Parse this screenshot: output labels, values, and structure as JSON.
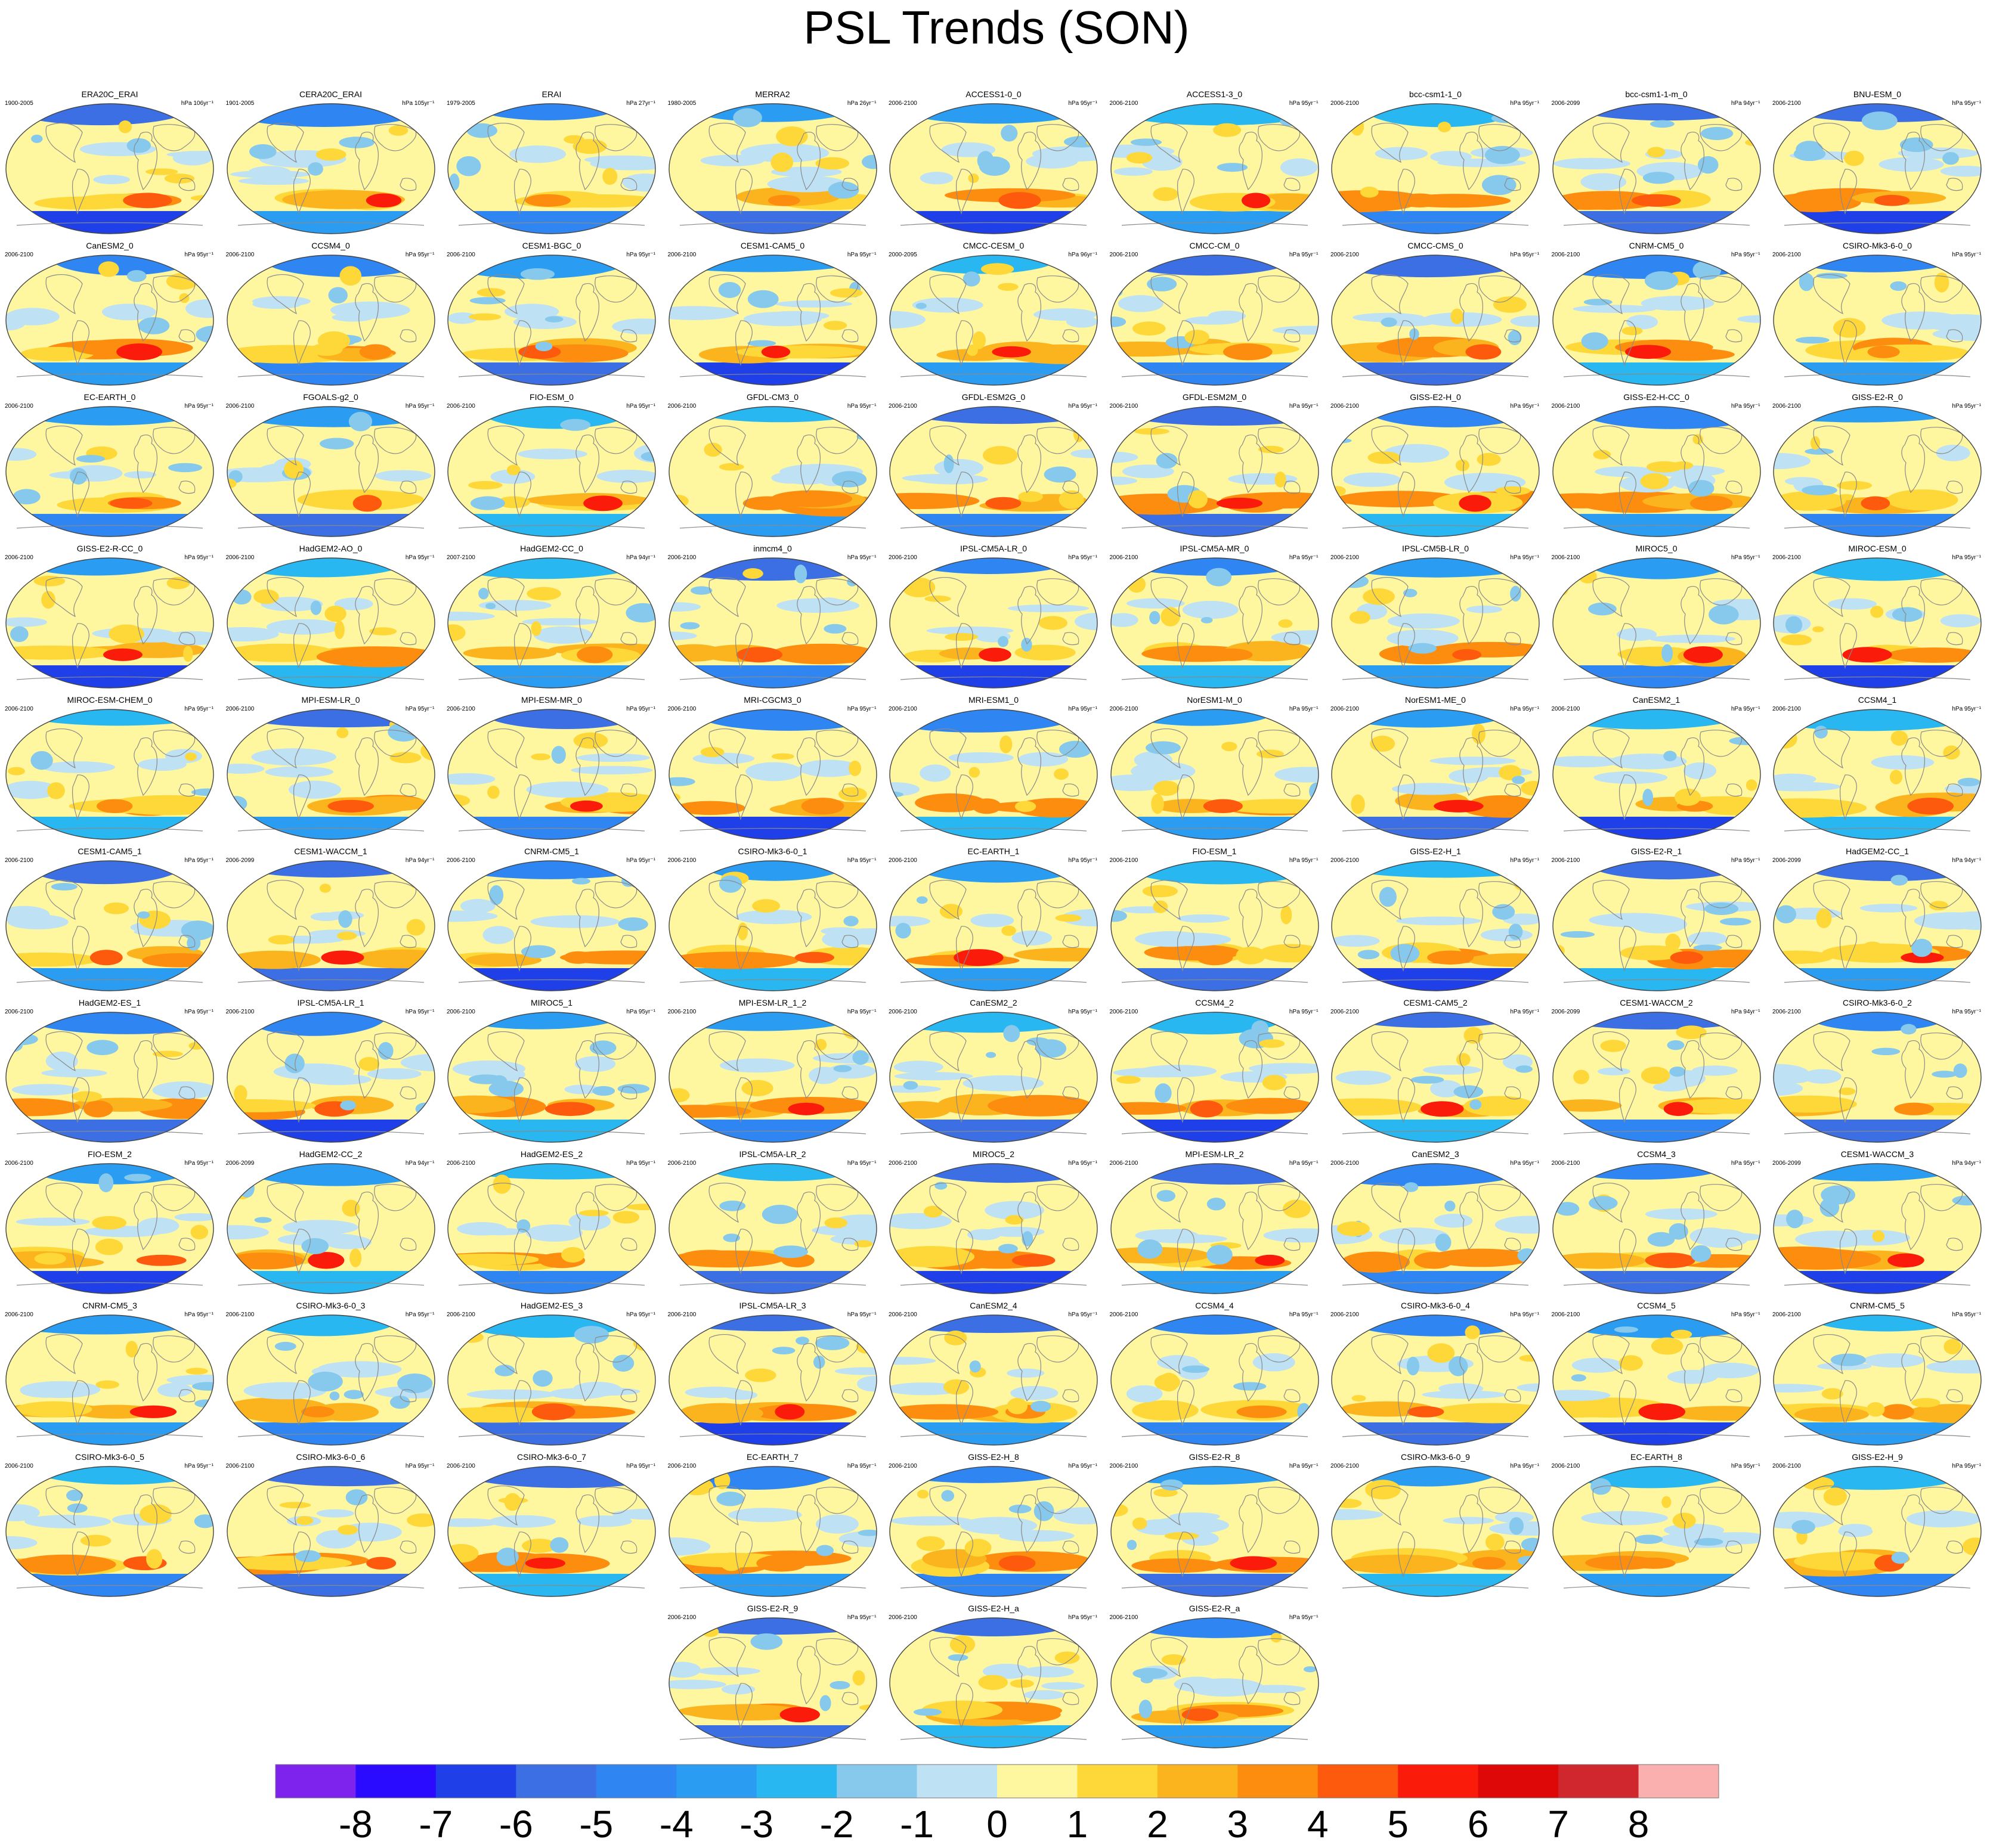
{
  "title": "PSL Trends (SON)",
  "chart_data": {
    "type": "heatmap",
    "title": "PSL Trends (SON)",
    "projection": "Robinson global map panels with coastlines",
    "colorbar": {
      "orientation": "horizontal",
      "placement": "bottom",
      "tick_labels": [
        "-8",
        "-7",
        "-6",
        "-5",
        "-4",
        "-3",
        "-2",
        "-1",
        "0",
        "1",
        "2",
        "3",
        "4",
        "5",
        "6",
        "7",
        "8"
      ],
      "colors": [
        "#7e22ee",
        "#2a0bff",
        "#1f3fe8",
        "#3b6fe3",
        "#2f86f2",
        "#2a9cf2",
        "#28b7f0",
        "#86c9ec",
        "#bfe1f4",
        "#fff7a0",
        "#fdd838",
        "#fbb41d",
        "#fc8d0f",
        "#fd5a0d",
        "#fb1b0b",
        "#de0808",
        "#d0272e",
        "#fbb0b0"
      ]
    },
    "panels": [
      {
        "name": "ERA20C_ERAI",
        "period": "1900-2005",
        "units": "hPa 106yr⁻¹"
      },
      {
        "name": "CERA20C_ERAI",
        "period": "1901-2005",
        "units": "hPa 105yr⁻¹"
      },
      {
        "name": "ERAI",
        "period": "1979-2005",
        "units": "hPa 27yr⁻¹"
      },
      {
        "name": "MERRA2",
        "period": "1980-2005",
        "units": "hPa 26yr⁻¹"
      },
      {
        "name": "ACCESS1-0_0",
        "period": "2006-2100",
        "units": "hPa 95yr⁻¹"
      },
      {
        "name": "ACCESS1-3_0",
        "period": "2006-2100",
        "units": "hPa 95yr⁻¹"
      },
      {
        "name": "bcc-csm1-1_0",
        "period": "2006-2100",
        "units": "hPa 95yr⁻¹"
      },
      {
        "name": "bcc-csm1-1-m_0",
        "period": "2006-2099",
        "units": "hPa 94yr⁻¹"
      },
      {
        "name": "BNU-ESM_0",
        "period": "2006-2100",
        "units": "hPa 95yr⁻¹"
      },
      {
        "name": "CanESM2_0",
        "period": "2006-2100",
        "units": "hPa 95yr⁻¹"
      },
      {
        "name": "CCSM4_0",
        "period": "2006-2100",
        "units": "hPa 95yr⁻¹"
      },
      {
        "name": "CESM1-BGC_0",
        "period": "2006-2100",
        "units": "hPa 95yr⁻¹"
      },
      {
        "name": "CESM1-CAM5_0",
        "period": "2006-2100",
        "units": "hPa 95yr⁻¹"
      },
      {
        "name": "CMCC-CESM_0",
        "period": "2000-2095",
        "units": "hPa 96yr⁻¹"
      },
      {
        "name": "CMCC-CM_0",
        "period": "2006-2100",
        "units": "hPa 95yr⁻¹"
      },
      {
        "name": "CMCC-CMS_0",
        "period": "2006-2100",
        "units": "hPa 95yr⁻¹"
      },
      {
        "name": "CNRM-CM5_0",
        "period": "2006-2100",
        "units": "hPa 95yr⁻¹"
      },
      {
        "name": "CSIRO-Mk3-6-0_0",
        "period": "2006-2100",
        "units": "hPa 95yr⁻¹"
      },
      {
        "name": "EC-EARTH_0",
        "period": "2006-2100",
        "units": "hPa 95yr⁻¹"
      },
      {
        "name": "FGOALS-g2_0",
        "period": "2006-2100",
        "units": "hPa 95yr⁻¹"
      },
      {
        "name": "FIO-ESM_0",
        "period": "2006-2100",
        "units": "hPa 95yr⁻¹"
      },
      {
        "name": "GFDL-CM3_0",
        "period": "2006-2100",
        "units": "hPa 95yr⁻¹"
      },
      {
        "name": "GFDL-ESM2G_0",
        "period": "2006-2100",
        "units": "hPa 95yr⁻¹"
      },
      {
        "name": "GFDL-ESM2M_0",
        "period": "2006-2100",
        "units": "hPa 95yr⁻¹"
      },
      {
        "name": "GISS-E2-H_0",
        "period": "2006-2100",
        "units": "hPa 95yr⁻¹"
      },
      {
        "name": "GISS-E2-H-CC_0",
        "period": "2006-2100",
        "units": "hPa 95yr⁻¹"
      },
      {
        "name": "GISS-E2-R_0",
        "period": "2006-2100",
        "units": "hPa 95yr⁻¹"
      },
      {
        "name": "GISS-E2-R-CC_0",
        "period": "2006-2100",
        "units": "hPa 95yr⁻¹"
      },
      {
        "name": "HadGEM2-AO_0",
        "period": "2006-2100",
        "units": "hPa 95yr⁻¹"
      },
      {
        "name": "HadGEM2-CC_0",
        "period": "2007-2100",
        "units": "hPa 94yr⁻¹"
      },
      {
        "name": "inmcm4_0",
        "period": "2006-2100",
        "units": "hPa 95yr⁻¹"
      },
      {
        "name": "IPSL-CM5A-LR_0",
        "period": "2006-2100",
        "units": "hPa 95yr⁻¹"
      },
      {
        "name": "IPSL-CM5A-MR_0",
        "period": "2006-2100",
        "units": "hPa 95yr⁻¹"
      },
      {
        "name": "IPSL-CM5B-LR_0",
        "period": "2006-2100",
        "units": "hPa 95yr⁻¹"
      },
      {
        "name": "MIROC5_0",
        "period": "2006-2100",
        "units": "hPa 95yr⁻¹"
      },
      {
        "name": "MIROC-ESM_0",
        "period": "2006-2100",
        "units": "hPa 95yr⁻¹"
      },
      {
        "name": "MIROC-ESM-CHEM_0",
        "period": "2006-2100",
        "units": "hPa 95yr⁻¹"
      },
      {
        "name": "MPI-ESM-LR_0",
        "period": "2006-2100",
        "units": "hPa 95yr⁻¹"
      },
      {
        "name": "MPI-ESM-MR_0",
        "period": "2006-2100",
        "units": "hPa 95yr⁻¹"
      },
      {
        "name": "MRI-CGCM3_0",
        "period": "2006-2100",
        "units": "hPa 95yr⁻¹"
      },
      {
        "name": "MRI-ESM1_0",
        "period": "2006-2100",
        "units": "hPa 95yr⁻¹"
      },
      {
        "name": "NorESM1-M_0",
        "period": "2006-2100",
        "units": "hPa 95yr⁻¹"
      },
      {
        "name": "NorESM1-ME_0",
        "period": "2006-2100",
        "units": "hPa 95yr⁻¹"
      },
      {
        "name": "CanESM2_1",
        "period": "2006-2100",
        "units": "hPa 95yr⁻¹"
      },
      {
        "name": "CCSM4_1",
        "period": "2006-2100",
        "units": "hPa 95yr⁻¹"
      },
      {
        "name": "CESM1-CAM5_1",
        "period": "2006-2100",
        "units": "hPa 95yr⁻¹"
      },
      {
        "name": "CESM1-WACCM_1",
        "period": "2006-2099",
        "units": "hPa 94yr⁻¹"
      },
      {
        "name": "CNRM-CM5_1",
        "period": "2006-2100",
        "units": "hPa 95yr⁻¹"
      },
      {
        "name": "CSIRO-Mk3-6-0_1",
        "period": "2006-2100",
        "units": "hPa 95yr⁻¹"
      },
      {
        "name": "EC-EARTH_1",
        "period": "2006-2100",
        "units": "hPa 95yr⁻¹"
      },
      {
        "name": "FIO-ESM_1",
        "period": "2006-2100",
        "units": "hPa 95yr⁻¹"
      },
      {
        "name": "GISS-E2-H_1",
        "period": "2006-2100",
        "units": "hPa 95yr⁻¹"
      },
      {
        "name": "GISS-E2-R_1",
        "period": "2006-2100",
        "units": "hPa 95yr⁻¹"
      },
      {
        "name": "HadGEM2-CC_1",
        "period": "2006-2099",
        "units": "hPa 94yr⁻¹"
      },
      {
        "name": "HadGEM2-ES_1",
        "period": "2006-2100",
        "units": "hPa 95yr⁻¹"
      },
      {
        "name": "IPSL-CM5A-LR_1",
        "period": "2006-2100",
        "units": "hPa 95yr⁻¹"
      },
      {
        "name": "MIROC5_1",
        "period": "2006-2100",
        "units": "hPa 95yr⁻¹"
      },
      {
        "name": "MPI-ESM-LR_1_2",
        "period": "2006-2100",
        "units": "hPa 95yr⁻¹"
      },
      {
        "name": "CanESM2_2",
        "period": "2006-2100",
        "units": "hPa 95yr⁻¹"
      },
      {
        "name": "CCSM4_2",
        "period": "2006-2100",
        "units": "hPa 95yr⁻¹"
      },
      {
        "name": "CESM1-CAM5_2",
        "period": "2006-2100",
        "units": "hPa 95yr⁻¹"
      },
      {
        "name": "CESM1-WACCM_2",
        "period": "2006-2099",
        "units": "hPa 94yr⁻¹"
      },
      {
        "name": "CSIRO-Mk3-6-0_2",
        "period": "2006-2100",
        "units": "hPa 95yr⁻¹"
      },
      {
        "name": "FIO-ESM_2",
        "period": "2006-2100",
        "units": "hPa 95yr⁻¹"
      },
      {
        "name": "HadGEM2-CC_2",
        "period": "2006-2099",
        "units": "hPa 94yr⁻¹"
      },
      {
        "name": "HadGEM2-ES_2",
        "period": "2006-2100",
        "units": "hPa 95yr⁻¹"
      },
      {
        "name": "IPSL-CM5A-LR_2",
        "period": "2006-2100",
        "units": "hPa 95yr⁻¹"
      },
      {
        "name": "MIROC5_2",
        "period": "2006-2100",
        "units": "hPa 95yr⁻¹"
      },
      {
        "name": "MPI-ESM-LR_2",
        "period": "2006-2100",
        "units": "hPa 95yr⁻¹"
      },
      {
        "name": "CanESM2_3",
        "period": "2006-2100",
        "units": "hPa 95yr⁻¹"
      },
      {
        "name": "CCSM4_3",
        "period": "2006-2100",
        "units": "hPa 95yr⁻¹"
      },
      {
        "name": "CESM1-WACCM_3",
        "period": "2006-2099",
        "units": "hPa 94yr⁻¹"
      },
      {
        "name": "CNRM-CM5_3",
        "period": "2006-2100",
        "units": "hPa 95yr⁻¹"
      },
      {
        "name": "CSIRO-Mk3-6-0_3",
        "period": "2006-2100",
        "units": "hPa 95yr⁻¹"
      },
      {
        "name": "HadGEM2-ES_3",
        "period": "2006-2100",
        "units": "hPa 95yr⁻¹"
      },
      {
        "name": "IPSL-CM5A-LR_3",
        "period": "2006-2100",
        "units": "hPa 95yr⁻¹"
      },
      {
        "name": "CanESM2_4",
        "period": "2006-2100",
        "units": "hPa 95yr⁻¹"
      },
      {
        "name": "CCSM4_4",
        "period": "2006-2100",
        "units": "hPa 95yr⁻¹"
      },
      {
        "name": "CSIRO-Mk3-6-0_4",
        "period": "2006-2100",
        "units": "hPa 95yr⁻¹"
      },
      {
        "name": "CCSM4_5",
        "period": "2006-2100",
        "units": "hPa 95yr⁻¹"
      },
      {
        "name": "CNRM-CM5_5",
        "period": "2006-2100",
        "units": "hPa 95yr⁻¹"
      },
      {
        "name": "CSIRO-Mk3-6-0_5",
        "period": "2006-2100",
        "units": "hPa 95yr⁻¹"
      },
      {
        "name": "CSIRO-Mk3-6-0_6",
        "period": "2006-2100",
        "units": "hPa 95yr⁻¹"
      },
      {
        "name": "CSIRO-Mk3-6-0_7",
        "period": "2006-2100",
        "units": "hPa 95yr⁻¹"
      },
      {
        "name": "EC-EARTH_7",
        "period": "2006-2100",
        "units": "hPa 95yr⁻¹"
      },
      {
        "name": "GISS-E2-H_8",
        "period": "2006-2100",
        "units": "hPa 95yr⁻¹"
      },
      {
        "name": "GISS-E2-R_8",
        "period": "2006-2100",
        "units": "hPa 95yr⁻¹"
      },
      {
        "name": "CSIRO-Mk3-6-0_9",
        "period": "2006-2100",
        "units": "hPa 95yr⁻¹"
      },
      {
        "name": "EC-EARTH_8",
        "period": "2006-2100",
        "units": "hPa 95yr⁻¹"
      },
      {
        "name": "GISS-E2-H_9",
        "period": "2006-2100",
        "units": "hPa 95yr⁻¹"
      },
      {
        "name": "GISS-E2-R_9",
        "period": "2006-2100",
        "units": "hPa 95yr⁻¹"
      },
      {
        "name": "GISS-E2-H_a",
        "period": "2006-2100",
        "units": "hPa 95yr⁻¹"
      },
      {
        "name": "GISS-E2-R_a",
        "period": "2006-2100",
        "units": "hPa 95yr⁻¹"
      }
    ]
  }
}
